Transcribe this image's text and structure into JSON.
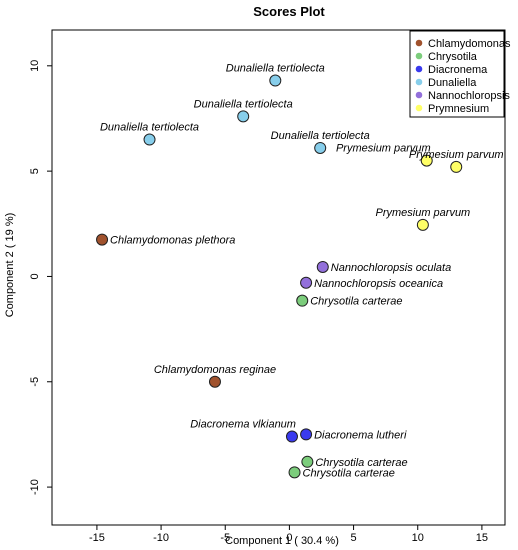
{
  "chart_data": {
    "type": "scatter",
    "title": "Scores Plot",
    "xlabel": "Component 1 ( 30.4 %)",
    "ylabel": "Component 2 ( 19 %)",
    "xlim": [
      -18.5,
      16.8
    ],
    "ylim": [
      -11.8,
      11.7
    ],
    "xticks": [
      -15,
      -10,
      -5,
      0,
      5,
      10,
      15
    ],
    "yticks": [
      10,
      5,
      0,
      -5,
      -10
    ],
    "grid": false,
    "legend_position": "top-right",
    "series": [
      {
        "name": "Chlamydomonas",
        "color": "#a0522d",
        "points": [
          {
            "x": -14.6,
            "y": 1.75,
            "label": "Chlamydomonas plethora",
            "label_side": "right"
          },
          {
            "x": -5.8,
            "y": -5.0,
            "label": "Chlamydomonas reginae",
            "label_side": "above"
          }
        ]
      },
      {
        "name": "Chrysotila",
        "color": "#7ccd7c",
        "points": [
          {
            "x": 1.0,
            "y": -1.15,
            "label": "Chrysotila carterae",
            "label_side": "right"
          },
          {
            "x": 1.4,
            "y": -8.8,
            "label": "Chrysotila carterae",
            "label_side": "right"
          },
          {
            "x": 0.4,
            "y": -9.3,
            "label": "Chrysotila carterae",
            "label_side": "right"
          }
        ]
      },
      {
        "name": "Diacronema",
        "color": "#3a3aee",
        "points": [
          {
            "x": 1.3,
            "y": -7.5,
            "label": "Diacronema lutheri",
            "label_side": "right"
          },
          {
            "x": 0.2,
            "y": -7.6,
            "label": "Diacronema vlkianum",
            "label_side": "above-left"
          }
        ]
      },
      {
        "name": "Dunaliella",
        "color": "#87ceeb",
        "points": [
          {
            "x": -1.1,
            "y": 9.3,
            "label": "Dunaliella tertiolecta",
            "label_side": "above"
          },
          {
            "x": -3.6,
            "y": 7.6,
            "label": "Dunaliella tertiolecta",
            "label_side": "above"
          },
          {
            "x": -10.9,
            "y": 6.5,
            "label": "Dunaliella tertiolecta",
            "label_side": "above"
          },
          {
            "x": 2.4,
            "y": 6.1,
            "label": "Dunaliella tertiolecta",
            "label_side": "above"
          }
        ]
      },
      {
        "name": "Nannochloropsis",
        "color": "#9370db",
        "points": [
          {
            "x": 2.6,
            "y": 0.45,
            "label": "Nannochloropsis oculata",
            "label_side": "right"
          },
          {
            "x": 1.3,
            "y": -0.3,
            "label": "Nannochloropsis oceanica",
            "label_side": "right"
          }
        ]
      },
      {
        "name": "Prymnesium",
        "color": "#ffff66",
        "points": [
          {
            "x": 10.7,
            "y": 5.5,
            "label": "Prymesium parvum",
            "label_side": "above-left"
          },
          {
            "x": 13.0,
            "y": 5.2,
            "label": "Prymesium parvum",
            "label_side": "above"
          },
          {
            "x": 10.4,
            "y": 2.45,
            "label": "Prymesium parvum",
            "label_side": "above"
          }
        ]
      }
    ],
    "legend_label_colors": {
      "Chlamydomonas": "#a0522d",
      "Chrysotila": "#32cd32",
      "Diacronema": "#0000ee",
      "Dunaliella": "#87ceeb",
      "Nannochloropsis": "#9370db",
      "Prymnesium": "#ffff66"
    }
  }
}
